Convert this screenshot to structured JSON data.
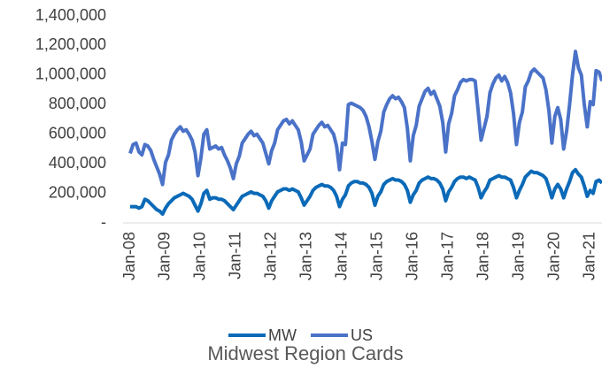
{
  "chart_data": {
    "type": "line",
    "title": "Midwest Region Cards",
    "categories": [
      "Jan-08",
      null,
      null,
      null,
      null,
      null,
      null,
      null,
      null,
      null,
      null,
      null,
      "Jan-09",
      null,
      null,
      null,
      null,
      null,
      null,
      null,
      null,
      null,
      null,
      null,
      "Jan-10",
      null,
      null,
      null,
      null,
      null,
      null,
      null,
      null,
      null,
      null,
      null,
      "Jan-11",
      null,
      null,
      null,
      null,
      null,
      null,
      null,
      null,
      null,
      null,
      null,
      "Jan-12",
      null,
      null,
      null,
      null,
      null,
      null,
      null,
      null,
      null,
      null,
      null,
      "Jan-13",
      null,
      null,
      null,
      null,
      null,
      null,
      null,
      null,
      null,
      null,
      null,
      "Jan-14",
      null,
      null,
      null,
      null,
      null,
      null,
      null,
      null,
      null,
      null,
      null,
      "Jan-15",
      null,
      null,
      null,
      null,
      null,
      null,
      null,
      null,
      null,
      null,
      null,
      "Jan-16",
      null,
      null,
      null,
      null,
      null,
      null,
      null,
      null,
      null,
      null,
      null,
      "Jan-17",
      null,
      null,
      null,
      null,
      null,
      null,
      null,
      null,
      null,
      null,
      null,
      "Jan-18",
      null,
      null,
      null,
      null,
      null,
      null,
      null,
      null,
      null,
      null,
      null,
      "Jan-19",
      null,
      null,
      null,
      null,
      null,
      null,
      null,
      null,
      null,
      null,
      null,
      "Jan-20",
      null,
      null,
      null,
      null,
      null,
      null,
      null,
      null,
      null,
      null,
      null,
      "Jan-21",
      null,
      null,
      null,
      null
    ],
    "series": [
      {
        "name": "MW",
        "color": "#0b6ab8",
        "values": [
          110000,
          110000,
          110000,
          100000,
          110000,
          160000,
          150000,
          130000,
          110000,
          90000,
          80000,
          60000,
          100000,
          130000,
          150000,
          170000,
          180000,
          190000,
          200000,
          190000,
          180000,
          160000,
          120000,
          80000,
          130000,
          200000,
          220000,
          160000,
          170000,
          170000,
          160000,
          160000,
          150000,
          130000,
          110000,
          90000,
          120000,
          150000,
          180000,
          190000,
          200000,
          210000,
          200000,
          200000,
          190000,
          180000,
          150000,
          100000,
          150000,
          180000,
          210000,
          220000,
          230000,
          230000,
          220000,
          230000,
          220000,
          210000,
          170000,
          120000,
          150000,
          180000,
          220000,
          240000,
          250000,
          260000,
          250000,
          250000,
          240000,
          220000,
          180000,
          110000,
          160000,
          190000,
          250000,
          270000,
          280000,
          280000,
          270000,
          270000,
          260000,
          240000,
          200000,
          120000,
          180000,
          210000,
          260000,
          280000,
          290000,
          300000,
          290000,
          290000,
          280000,
          260000,
          220000,
          140000,
          190000,
          220000,
          270000,
          290000,
          300000,
          310000,
          300000,
          300000,
          290000,
          270000,
          230000,
          150000,
          210000,
          240000,
          280000,
          300000,
          310000,
          310000,
          300000,
          310000,
          300000,
          290000,
          240000,
          170000,
          210000,
          240000,
          290000,
          300000,
          310000,
          320000,
          310000,
          310000,
          300000,
          290000,
          240000,
          170000,
          220000,
          260000,
          310000,
          330000,
          350000,
          340000,
          340000,
          330000,
          320000,
          300000,
          240000,
          170000,
          230000,
          260000,
          230000,
          170000,
          230000,
          280000,
          340000,
          360000,
          330000,
          310000,
          250000,
          180000,
          220000,
          200000,
          280000,
          290000,
          270000
        ]
      },
      {
        "name": "US",
        "color": "#4a72c8",
        "values": [
          470000,
          530000,
          540000,
          480000,
          460000,
          530000,
          520000,
          490000,
          430000,
          380000,
          330000,
          260000,
          410000,
          460000,
          560000,
          600000,
          630000,
          650000,
          620000,
          630000,
          600000,
          560000,
          480000,
          320000,
          440000,
          600000,
          630000,
          500000,
          510000,
          520000,
          500000,
          510000,
          460000,
          420000,
          370000,
          300000,
          400000,
          450000,
          540000,
          570000,
          600000,
          620000,
          590000,
          600000,
          570000,
          540000,
          470000,
          400000,
          490000,
          540000,
          630000,
          660000,
          690000,
          700000,
          670000,
          690000,
          660000,
          630000,
          550000,
          420000,
          460000,
          500000,
          600000,
          630000,
          660000,
          680000,
          650000,
          660000,
          630000,
          600000,
          520000,
          360000,
          540000,
          530000,
          800000,
          810000,
          800000,
          790000,
          780000,
          760000,
          720000,
          650000,
          550000,
          430000,
          550000,
          620000,
          750000,
          800000,
          840000,
          860000,
          840000,
          850000,
          820000,
          780000,
          640000,
          420000,
          590000,
          660000,
          790000,
          840000,
          890000,
          910000,
          870000,
          890000,
          840000,
          790000,
          680000,
          480000,
          670000,
          740000,
          860000,
          900000,
          950000,
          970000,
          960000,
          970000,
          970000,
          960000,
          760000,
          560000,
          640000,
          720000,
          880000,
          940000,
          980000,
          1000000,
          960000,
          990000,
          950000,
          880000,
          740000,
          530000,
          680000,
          750000,
          920000,
          960000,
          1020000,
          1040000,
          1020000,
          1000000,
          980000,
          900000,
          760000,
          540000,
          720000,
          780000,
          700000,
          500000,
          620000,
          800000,
          1000000,
          1160000,
          1050000,
          1000000,
          800000,
          650000,
          820000,
          800000,
          1030000,
          1020000,
          960000
        ]
      }
    ],
    "ylim": [
      0,
      1400000
    ],
    "yticks": [
      {
        "value": 0,
        "label": "-"
      },
      {
        "value": 200000,
        "label": "200,000"
      },
      {
        "value": 400000,
        "label": "400,000"
      },
      {
        "value": 600000,
        "label": "600,000"
      },
      {
        "value": 800000,
        "label": "800,000"
      },
      {
        "value": 1000000,
        "label": "1,000,000"
      },
      {
        "value": 1200000,
        "label": "1,200,000"
      },
      {
        "value": 1400000,
        "label": "1,400,000"
      }
    ],
    "grid": false,
    "legend": "bottom"
  }
}
